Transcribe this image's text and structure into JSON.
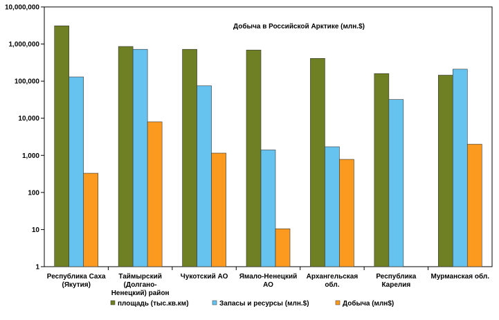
{
  "chart_data": {
    "type": "bar",
    "title": "Добыча в Российской Арктике (млн.$)",
    "y_scale": "log",
    "ylim": [
      1,
      10000000
    ],
    "y_ticks": [
      {
        "value": 1,
        "label": "1"
      },
      {
        "value": 10,
        "label": "10"
      },
      {
        "value": 100,
        "label": "100"
      },
      {
        "value": 1000,
        "label": "1,000"
      },
      {
        "value": 10000,
        "label": "10,000"
      },
      {
        "value": 100000,
        "label": "100,000"
      },
      {
        "value": 1000000,
        "label": "1,000,000"
      },
      {
        "value": 10000000,
        "label": "10,000,000"
      }
    ],
    "grid": false,
    "legend_position": "bottom",
    "categories": [
      [
        "Республика Саха",
        "(Якутия)"
      ],
      [
        "Таймырский",
        "(Долгано-",
        "Ненецкий) район"
      ],
      [
        "Чукотский АО"
      ],
      [
        "Ямало-Ненецкий",
        "АО"
      ],
      [
        "Архангельская",
        "обл."
      ],
      [
        "Республика",
        "Карелия"
      ],
      [
        "Мурманская обл."
      ]
    ],
    "series": [
      {
        "name": "площадь (тыс.кв.км)",
        "color": "#6f7f23",
        "values": [
          3100000,
          860000,
          720000,
          690000,
          410000,
          160000,
          145000
        ]
      },
      {
        "name": "Запасы и ресурсы (млн.$)",
        "color": "#66c2ee",
        "values": [
          130000,
          720000,
          75000,
          1400,
          1700,
          32000,
          210000
        ]
      },
      {
        "name": "Добыча (млн$)",
        "color": "#fb9a1e",
        "values": [
          330,
          8000,
          1150,
          10.5,
          780,
          null,
          2000
        ]
      }
    ]
  }
}
